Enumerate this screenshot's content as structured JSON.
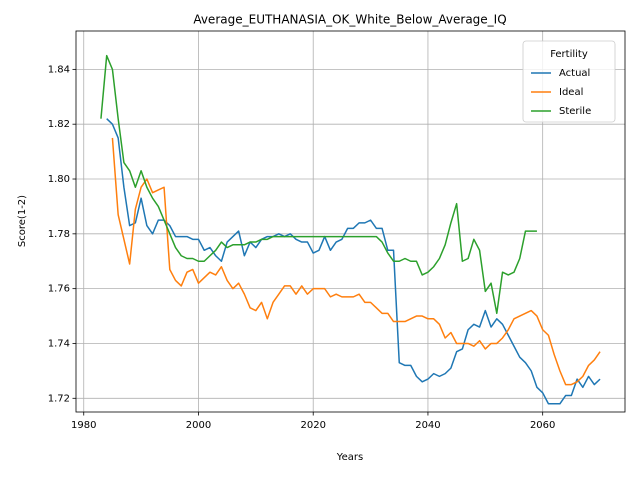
{
  "chart_data": {
    "type": "line",
    "title": "Average_EUTHANASIA_OK_White_Below_Average_IQ",
    "xlabel": "Years",
    "ylabel": "Score(1-2)",
    "legend_title": "Fertility",
    "legend_position": "upper right",
    "grid": true,
    "xlim": [
      1978.65,
      2074.35
    ],
    "ylim": [
      1.715,
      1.854
    ],
    "xticks": [
      1980,
      2000,
      2020,
      2040,
      2060
    ],
    "yticks": [
      1.72,
      1.74,
      1.76,
      1.78,
      {
        "value": 1.8,
        "label": "1.80"
      },
      1.82,
      1.84
    ],
    "x": [
      1983,
      1984,
      1985,
      1986,
      1987,
      1988,
      1989,
      1990,
      1991,
      1992,
      1993,
      1994,
      1995,
      1996,
      1997,
      1998,
      1999,
      2000,
      2001,
      2002,
      2003,
      2004,
      2005,
      2006,
      2007,
      2008,
      2009,
      2010,
      2011,
      2012,
      2013,
      2014,
      2015,
      2016,
      2017,
      2018,
      2019,
      2020,
      2021,
      2022,
      2023,
      2024,
      2025,
      2026,
      2027,
      2028,
      2029,
      2030,
      2031,
      2032,
      2033,
      2034,
      2035,
      2036,
      2037,
      2038,
      2039,
      2040,
      2041,
      2042,
      2043,
      2044,
      2045,
      2046,
      2047,
      2048,
      2049,
      2050,
      2051,
      2052,
      2053,
      2054,
      2055,
      2056,
      2057,
      2058,
      2059,
      2060,
      2061,
      2062,
      2063,
      2064,
      2065,
      2066,
      2067,
      2068,
      2069,
      2070
    ],
    "series": [
      {
        "name": "Actual",
        "color": "#1f77b4",
        "values": [
          null,
          1.822,
          1.82,
          1.815,
          1.797,
          1.783,
          1.784,
          1.793,
          1.783,
          1.78,
          1.785,
          1.785,
          1.783,
          1.779,
          1.779,
          1.779,
          1.778,
          1.778,
          1.774,
          1.775,
          1.772,
          1.77,
          1.777,
          1.779,
          1.781,
          1.772,
          1.777,
          1.775,
          1.778,
          1.779,
          1.779,
          1.78,
          1.779,
          1.78,
          1.778,
          1.777,
          1.777,
          1.773,
          1.774,
          1.779,
          1.774,
          1.777,
          1.778,
          1.782,
          1.782,
          1.784,
          1.784,
          1.785,
          1.782,
          1.782,
          1.774,
          1.774,
          1.733,
          1.732,
          1.732,
          1.728,
          1.726,
          1.727,
          1.729,
          1.728,
          1.729,
          1.731,
          1.737,
          1.738,
          1.745,
          1.747,
          1.746,
          1.752,
          1.746,
          1.749,
          1.747,
          1.743,
          1.739,
          1.735,
          1.733,
          1.73,
          1.724,
          1.722,
          1.718,
          1.718,
          1.718,
          1.721,
          1.721,
          1.727,
          1.724,
          1.728,
          1.725,
          1.727
        ]
      },
      {
        "name": "Ideal",
        "color": "#ff7f0e",
        "values": [
          null,
          null,
          1.815,
          1.787,
          1.778,
          1.769,
          1.789,
          1.797,
          1.8,
          1.795,
          1.796,
          1.797,
          1.767,
          1.763,
          1.761,
          1.766,
          1.767,
          1.762,
          1.764,
          1.766,
          1.765,
          1.768,
          1.763,
          1.76,
          1.762,
          1.758,
          1.753,
          1.752,
          1.755,
          1.749,
          1.755,
          1.758,
          1.761,
          1.761,
          1.758,
          1.761,
          1.758,
          1.76,
          1.76,
          1.76,
          1.757,
          1.758,
          1.757,
          1.757,
          1.757,
          1.758,
          1.755,
          1.755,
          1.753,
          1.751,
          1.751,
          1.748,
          1.748,
          1.748,
          1.749,
          1.75,
          1.75,
          1.749,
          1.749,
          1.747,
          1.742,
          1.744,
          1.74,
          1.74,
          1.74,
          1.739,
          1.741,
          1.738,
          1.74,
          1.74,
          1.742,
          1.745,
          1.749,
          1.75,
          1.751,
          1.752,
          1.75,
          1.745,
          1.743,
          1.736,
          1.73,
          1.725,
          1.725,
          1.726,
          1.728,
          1.732,
          1.734,
          1.737
        ]
      },
      {
        "name": "Sterile",
        "color": "#2ca02c",
        "values": [
          1.822,
          1.845,
          1.84,
          1.822,
          1.806,
          1.803,
          1.797,
          1.803,
          1.797,
          1.793,
          1.79,
          1.785,
          1.78,
          1.775,
          1.772,
          1.771,
          1.771,
          1.77,
          1.77,
          1.772,
          1.774,
          1.777,
          1.775,
          1.776,
          1.776,
          1.776,
          1.777,
          1.777,
          1.778,
          1.778,
          1.779,
          1.779,
          1.779,
          1.779,
          1.779,
          1.779,
          1.779,
          1.779,
          1.779,
          1.779,
          1.779,
          1.779,
          1.779,
          1.779,
          1.779,
          1.779,
          1.779,
          1.779,
          1.779,
          1.777,
          1.773,
          1.77,
          1.77,
          1.771,
          1.77,
          1.77,
          1.765,
          1.766,
          1.768,
          1.771,
          1.776,
          1.784,
          1.791,
          1.77,
          1.771,
          1.778,
          1.774,
          1.759,
          1.762,
          1.751,
          1.766,
          1.765,
          1.766,
          1.771,
          1.781,
          1.781,
          1.781,
          null,
          null,
          null,
          null,
          null,
          null,
          null,
          null,
          null,
          null,
          null
        ]
      }
    ]
  }
}
